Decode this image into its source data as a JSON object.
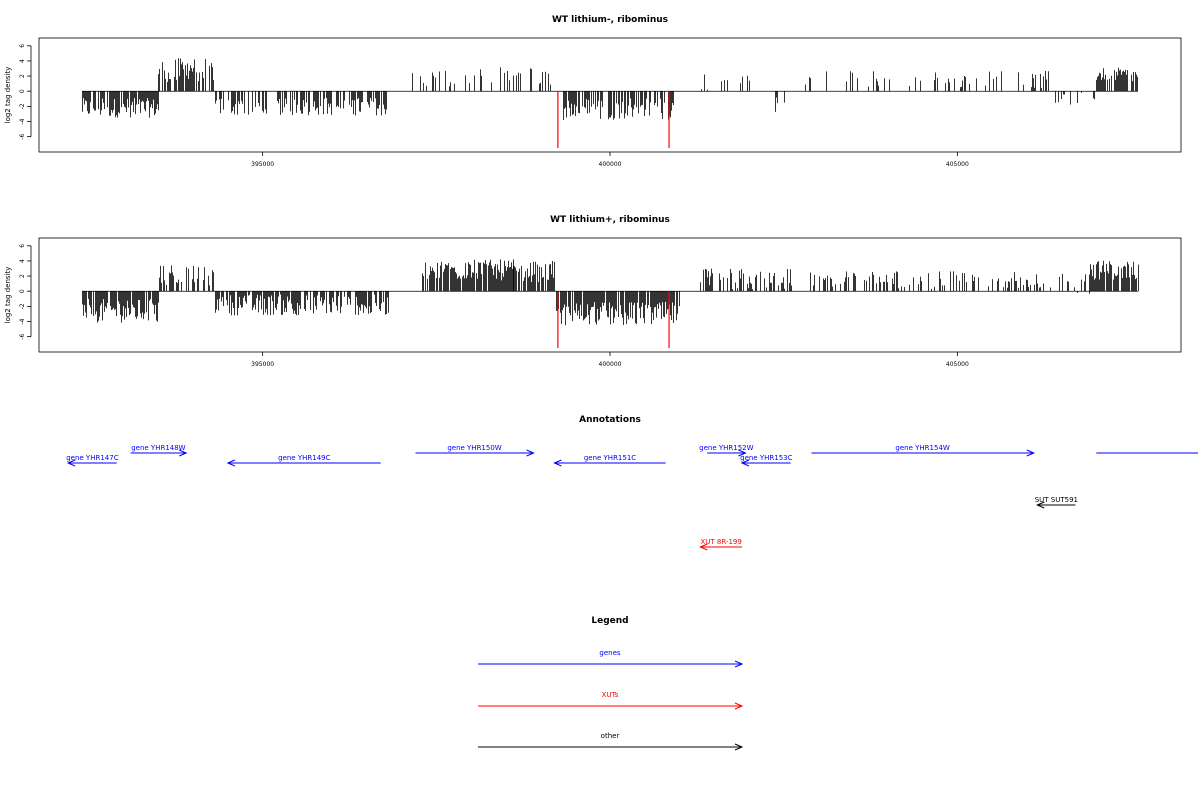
{
  "chart_data": [
    {
      "type": "bar",
      "title": "WT lithium-, ribominus",
      "xlabel": "",
      "ylabel": "log2 tag density",
      "xlim": [
        391800,
        407800
      ],
      "ylim": [
        -7.5,
        6.5
      ],
      "xticks": [
        395000,
        400000,
        405000
      ],
      "xtick_labels": [
        "395000",
        "400000",
        "405000"
      ],
      "yticks": [
        -6,
        -4,
        -2,
        0,
        2,
        4,
        6
      ],
      "ytick_labels": [
        "-6",
        "-4",
        "-2",
        "0",
        "2",
        "4",
        "6"
      ],
      "segments": [
        {
          "x0": 392400,
          "x1": 393500,
          "density": 0.8,
          "mean": -2.2,
          "amp": 1.3,
          "min": -5.0,
          "max": 0
        },
        {
          "x0": 393500,
          "x1": 394300,
          "density": 0.7,
          "mean": 2.8,
          "amp": 1.6,
          "min": 0,
          "max": 5.8
        },
        {
          "x0": 394300,
          "x1": 396800,
          "density": 0.55,
          "mean": -2.0,
          "amp": 1.2,
          "min": -4.5,
          "max": 0
        },
        {
          "x0": 397100,
          "x1": 398300,
          "density": 0.25,
          "mean": 1.6,
          "amp": 1.4,
          "min": 0,
          "max": 3.6
        },
        {
          "x0": 398300,
          "x1": 399300,
          "density": 0.3,
          "mean": 2.0,
          "amp": 1.2,
          "min": 0,
          "max": 4.0
        },
        {
          "x0": 399300,
          "x1": 400900,
          "density": 0.55,
          "mean": -2.3,
          "amp": 1.5,
          "min": -5.0,
          "max": 0
        },
        {
          "x0": 401300,
          "x1": 402000,
          "density": 0.2,
          "mean": 1.3,
          "amp": 1.2,
          "min": 0,
          "max": 3.4
        },
        {
          "x0": 402300,
          "x1": 402600,
          "density": 0.35,
          "mean": -1.8,
          "amp": 1.0,
          "min": -3.8,
          "max": 0
        },
        {
          "x0": 402800,
          "x1": 406400,
          "density": 0.18,
          "mean": 1.6,
          "amp": 1.2,
          "min": -2.0,
          "max": 4.0
        },
        {
          "x0": 406400,
          "x1": 407000,
          "density": 0.2,
          "mean": -1.0,
          "amp": 0.8,
          "min": -2.0,
          "max": 0
        },
        {
          "x0": 407000,
          "x1": 407600,
          "density": 0.7,
          "mean": 2.2,
          "amp": 0.9,
          "min": 0,
          "max": 3.4
        }
      ],
      "highlights": [
        {
          "x": 399250,
          "value": -7.5,
          "color": "#ff0000"
        },
        {
          "x": 400850,
          "value": -7.5,
          "color": "#ff0000"
        }
      ]
    },
    {
      "type": "bar",
      "title": "WT lithium+, ribominus",
      "xlabel": "",
      "ylabel": "log2 tag density",
      "xlim": [
        391800,
        407800
      ],
      "ylim": [
        -7.5,
        6.5
      ],
      "xticks": [
        395000,
        400000,
        405000
      ],
      "xtick_labels": [
        "395000",
        "400000",
        "405000"
      ],
      "yticks": [
        -6,
        -4,
        -2,
        0,
        2,
        4,
        6
      ],
      "ytick_labels": [
        "-6",
        "-4",
        "-2",
        "0",
        "2",
        "4",
        "6"
      ],
      "segments": [
        {
          "x0": 392400,
          "x1": 393500,
          "density": 0.85,
          "mean": -2.6,
          "amp": 1.6,
          "min": -6.8,
          "max": 3.0
        },
        {
          "x0": 393500,
          "x1": 394300,
          "density": 0.6,
          "mean": 2.2,
          "amp": 1.5,
          "min": 0,
          "max": 5.0
        },
        {
          "x0": 394300,
          "x1": 396800,
          "density": 0.75,
          "mean": -1.8,
          "amp": 1.4,
          "min": -4.5,
          "max": 3.6
        },
        {
          "x0": 397300,
          "x1": 398600,
          "density": 0.8,
          "mean": 2.8,
          "amp": 1.4,
          "min": 0,
          "max": 5.4
        },
        {
          "x0": 398600,
          "x1": 399200,
          "density": 0.8,
          "mean": 2.6,
          "amp": 1.4,
          "min": 0,
          "max": 5.4
        },
        {
          "x0": 399200,
          "x1": 401000,
          "density": 0.9,
          "mean": -3.0,
          "amp": 1.6,
          "min": -7.0,
          "max": 0
        },
        {
          "x0": 401300,
          "x1": 402600,
          "density": 0.55,
          "mean": 1.5,
          "amp": 1.5,
          "min": -3.8,
          "max": 4.6
        },
        {
          "x0": 402800,
          "x1": 405900,
          "density": 0.4,
          "mean": 1.5,
          "amp": 1.2,
          "min": 0,
          "max": 3.2
        },
        {
          "x0": 405900,
          "x1": 406900,
          "density": 0.3,
          "mean": 0.8,
          "amp": 1.5,
          "min": -2.6,
          "max": 3.0
        },
        {
          "x0": 406900,
          "x1": 407600,
          "density": 0.9,
          "mean": 2.8,
          "amp": 1.3,
          "min": 0,
          "max": 6.4
        }
      ],
      "highlights": [
        {
          "x": 399250,
          "value": -7.5,
          "color": "#ff0000"
        },
        {
          "x": 400850,
          "value": -7.5,
          "color": "#ff0000"
        }
      ]
    }
  ],
  "annotations": {
    "title": "Annotations",
    "features": [
      {
        "label": "gene YHR147C",
        "start": 392900,
        "end": 392200,
        "row": 1,
        "kind": "gene"
      },
      {
        "label": "gene YHR148W",
        "start": 393100,
        "end": 393900,
        "row": 0,
        "kind": "gene"
      },
      {
        "label": "gene YHR149C",
        "start": 396700,
        "end": 394500,
        "row": 1,
        "kind": "gene"
      },
      {
        "label": "gene YHR150W",
        "start": 397200,
        "end": 398900,
        "row": 0,
        "kind": "gene"
      },
      {
        "label": "gene YHR151C",
        "start": 400800,
        "end": 399200,
        "row": 1,
        "kind": "gene"
      },
      {
        "label": "gene YHR152W",
        "start": 401400,
        "end": 401950,
        "row": 0,
        "kind": "gene"
      },
      {
        "label": "gene YHR153C",
        "start": 402600,
        "end": 401900,
        "row": 1,
        "kind": "gene"
      },
      {
        "label": "gene YHR154W",
        "start": 402900,
        "end": 406100,
        "row": 0,
        "kind": "gene"
      },
      {
        "label": "",
        "start": 407000,
        "end": 409000,
        "row": 0,
        "kind": "gene"
      },
      {
        "label": "SUT SUT591",
        "start": 406700,
        "end": 406150,
        "row": 2,
        "kind": "other"
      },
      {
        "label": "XUT 8R-199",
        "start": 401900,
        "end": 401300,
        "row": 3,
        "kind": "xut"
      }
    ]
  },
  "legend": {
    "title": "Legend",
    "items": [
      {
        "label": "genes",
        "color": "#0000ff"
      },
      {
        "label": "XUTs",
        "color": "#ff0000"
      },
      {
        "label": "other",
        "color": "#000000"
      }
    ]
  },
  "colors": {
    "gene": "#0000ff",
    "xut": "#ff0000",
    "other": "#000000",
    "bars": "#000000"
  }
}
